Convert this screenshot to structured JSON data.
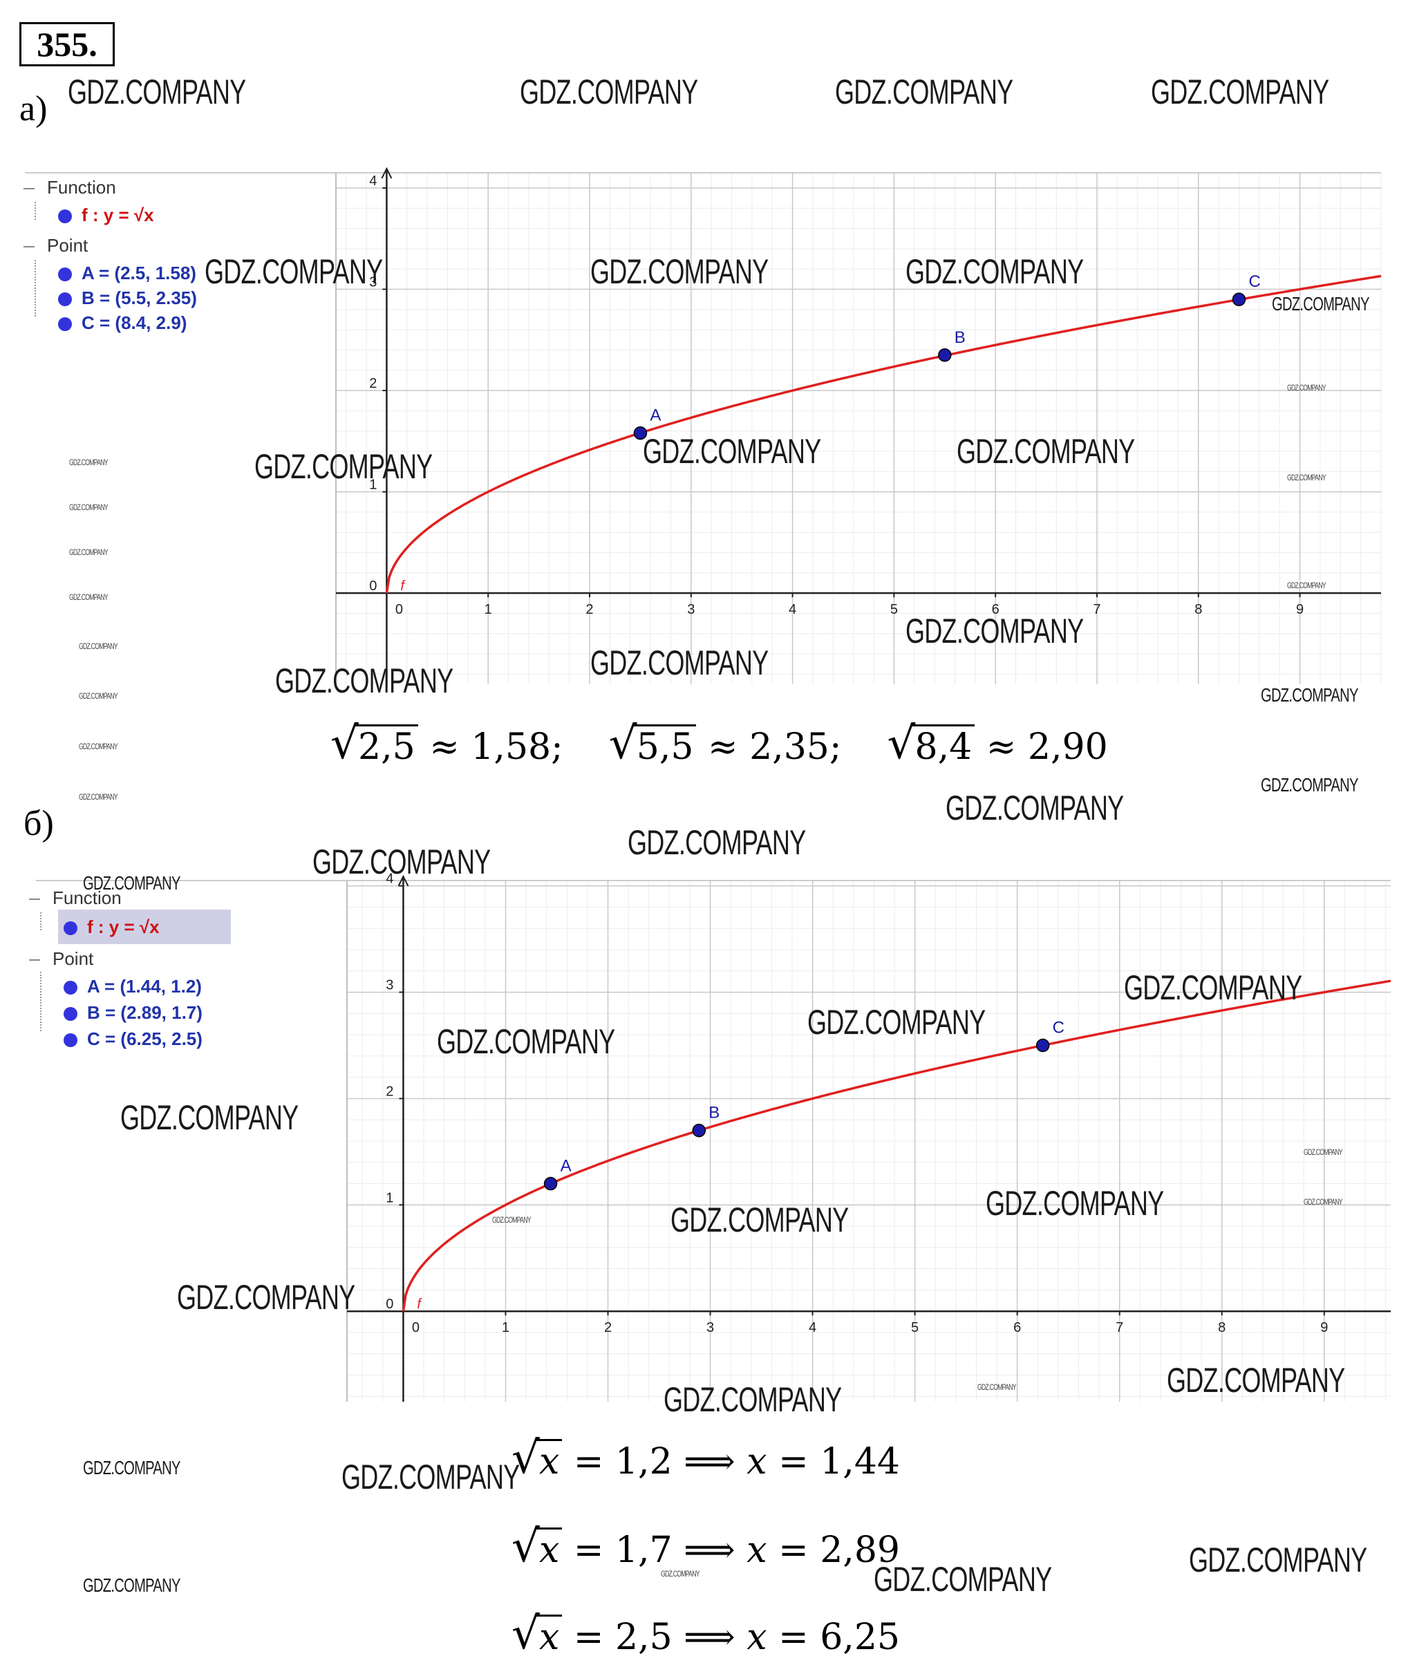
{
  "problem_number": "355.",
  "part_a": {
    "label": "а)",
    "algebra": {
      "function_header": "Function",
      "function_label": "f : y = √x",
      "point_header": "Point",
      "points": [
        "A = (2.5, 1.58)",
        "B = (5.5, 2.35)",
        "C = (8.4, 2.9)"
      ]
    },
    "equations": [
      "2,5",
      "≈ 1,58;",
      "5,5",
      "≈ 2,35;",
      "8,4",
      "≈ 2,90"
    ]
  },
  "part_b": {
    "label": "б)",
    "algebra": {
      "function_header": "Function",
      "function_label": "f : y = √x",
      "point_header": "Point",
      "points": [
        "A = (1.44, 1.2)",
        "B = (2.89, 1.7)",
        "C = (6.25, 2.5)"
      ]
    },
    "equations": [
      {
        "lhs": "x",
        "rhs": " = 1,2 ⟹ ",
        "var": "x",
        "res": " = 1,44"
      },
      {
        "lhs": "x",
        "rhs": " = 1,7 ⟹ ",
        "var": "x",
        "res": " = 2,89"
      },
      {
        "lhs": "x",
        "rhs": " = 2,5 ⟹ ",
        "var": "x",
        "res": " = 6,25"
      }
    ]
  },
  "watermark": "GDZ.COMPANY",
  "chart_data": [
    {
      "type": "line",
      "function": "y = sqrt(x)",
      "function_label": "f",
      "color": "#e02020",
      "point_color": "#1a1aa8",
      "xlim": [
        -0.5,
        9.8
      ],
      "ylim": [
        -0.9,
        4.15
      ],
      "x_ticks": [
        "0",
        "1",
        "2",
        "3",
        "4",
        "5",
        "6",
        "7",
        "8",
        "9"
      ],
      "y_ticks": [
        "0",
        "1",
        "2",
        "3",
        "4"
      ],
      "grid": true,
      "points": [
        {
          "name": "A",
          "x": 2.5,
          "y": 1.58
        },
        {
          "name": "B",
          "x": 5.5,
          "y": 2.35
        },
        {
          "name": "C",
          "x": 8.4,
          "y": 2.9
        }
      ]
    },
    {
      "type": "line",
      "function": "y = sqrt(x)",
      "function_label": "f",
      "color": "#e02020",
      "point_color": "#1a1aa8",
      "xlim": [
        -0.55,
        9.65
      ],
      "ylim": [
        -0.85,
        4.05
      ],
      "x_ticks": [
        "0",
        "1",
        "2",
        "3",
        "4",
        "5",
        "6",
        "7",
        "8",
        "9"
      ],
      "y_ticks": [
        "0",
        "1",
        "2",
        "3",
        "4"
      ],
      "grid": true,
      "points": [
        {
          "name": "A",
          "x": 1.44,
          "y": 1.2
        },
        {
          "name": "B",
          "x": 2.89,
          "y": 1.7
        },
        {
          "name": "C",
          "x": 6.25,
          "y": 2.5
        }
      ]
    }
  ]
}
